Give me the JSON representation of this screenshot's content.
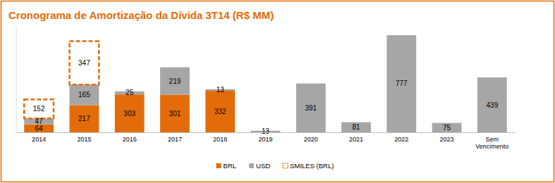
{
  "chart_data": {
    "type": "bar",
    "title": "Cronograma de Amortização da Dívida 3T14 (R$ MM)",
    "categories": [
      "2014",
      "2015",
      "2016",
      "2017",
      "2018",
      "2019",
      "2020",
      "2021",
      "2022",
      "2023",
      "Sem Vencimento"
    ],
    "series": [
      {
        "name": "BRL",
        "color": "#e36c0a",
        "values": [
          64,
          217,
          303,
          301,
          332,
          null,
          null,
          null,
          null,
          null,
          null
        ]
      },
      {
        "name": "USD",
        "color": "#a6a6a6",
        "values": [
          47,
          165,
          25,
          219,
          13,
          13,
          391,
          81,
          777,
          75,
          439
        ]
      },
      {
        "name": "SMILES (BRL)",
        "color": "#e36c0a",
        "line_style": "dashed",
        "values": [
          152,
          347,
          null,
          null,
          null,
          null,
          null,
          null,
          null,
          null,
          null
        ]
      }
    ],
    "stacked": true,
    "data_labels": true,
    "ylim": [
      0,
      850
    ],
    "tick_labels": "x",
    "grid": false,
    "legend": "bottom"
  }
}
